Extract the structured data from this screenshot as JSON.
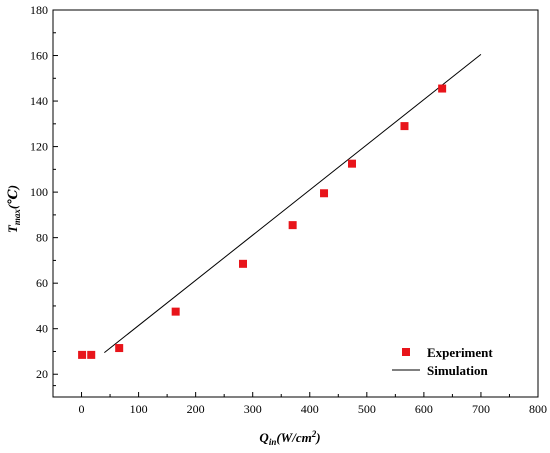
{
  "chart_data": {
    "type": "scatter",
    "title": "",
    "xlabel": "Q_in(W/cm²)",
    "xlabel_parts": {
      "main": "Q",
      "sub": "in",
      "rest": "(W/cm",
      "sup": "2",
      "end": ")"
    },
    "ylabel": "T_max(℃)",
    "ylabel_parts": {
      "main": "T",
      "sub": "max",
      "rest": "(℃)"
    },
    "xlim": [
      -50,
      800
    ],
    "ylim": [
      10,
      180
    ],
    "xticks": [
      0,
      100,
      200,
      300,
      400,
      500,
      600,
      700,
      800
    ],
    "yticks": [
      20,
      40,
      60,
      80,
      100,
      120,
      140,
      160,
      180
    ],
    "grid": false,
    "legend_position": "bottom-right",
    "series": [
      {
        "name": "Experiment",
        "kind": "scatter",
        "marker": "square",
        "color": "#e8141a",
        "points": [
          {
            "x": 1,
            "y": 28.5
          },
          {
            "x": 17,
            "y": 28.5
          },
          {
            "x": 66,
            "y": 31.5
          },
          {
            "x": 165,
            "y": 47.5
          },
          {
            "x": 283,
            "y": 68.5
          },
          {
            "x": 370,
            "y": 85.5
          },
          {
            "x": 425,
            "y": 99.5
          },
          {
            "x": 474,
            "y": 112.5
          },
          {
            "x": 566,
            "y": 129
          },
          {
            "x": 632,
            "y": 145.5
          }
        ]
      },
      {
        "name": "Simulation",
        "kind": "line",
        "color": "#000000",
        "points": [
          {
            "x": 40,
            "y": 29.5
          },
          {
            "x": 700,
            "y": 160.5
          }
        ]
      }
    ]
  }
}
